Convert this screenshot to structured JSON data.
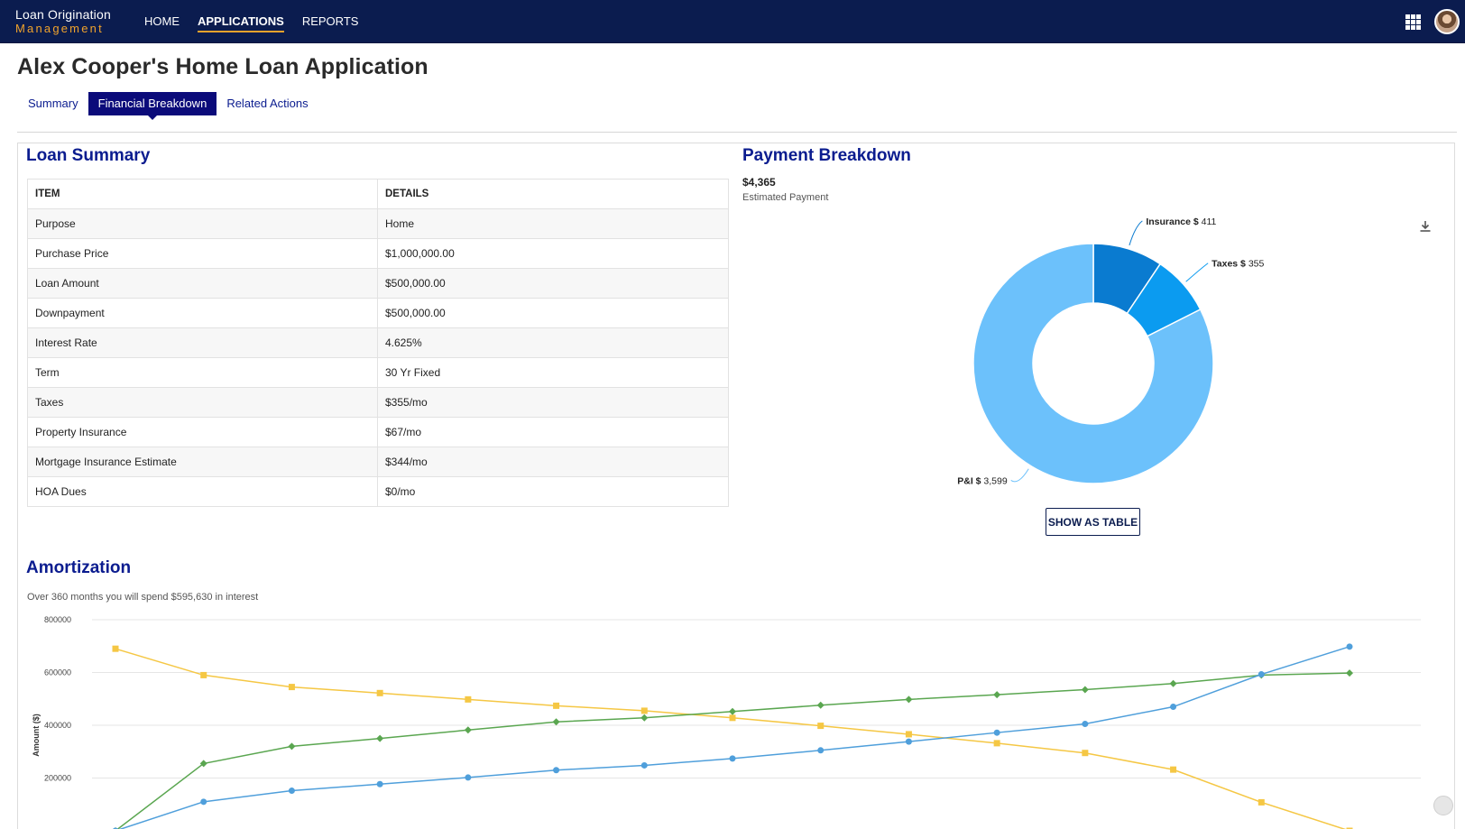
{
  "app": {
    "logo_line1": "Loan Origination",
    "logo_line2": "Management",
    "nav": [
      "HOME",
      "APPLICATIONS",
      "REPORTS"
    ],
    "active_nav": "APPLICATIONS",
    "accent": "#f0a32c",
    "navbar_color": "#0b1c4f"
  },
  "page": {
    "title": "Alex Cooper's Home Loan Application",
    "tabs": [
      "Summary",
      "Financial Breakdown",
      "Related Actions"
    ],
    "active_tab": "Financial Breakdown"
  },
  "loan_summary": {
    "title": "Loan Summary",
    "headers": [
      "ITEM",
      "DETAILS"
    ],
    "rows": [
      [
        "Purpose",
        "Home"
      ],
      [
        "Purchase Price",
        "$1,000,000.00"
      ],
      [
        "Loan Amount",
        "$500,000.00"
      ],
      [
        "Downpayment",
        "$500,000.00"
      ],
      [
        "Interest Rate",
        "4.625%"
      ],
      [
        "Term",
        "30 Yr Fixed"
      ],
      [
        "Taxes",
        "$355/mo"
      ],
      [
        "Property Insurance",
        "$67/mo"
      ],
      [
        "Mortgage Insurance Estimate",
        "$344/mo"
      ],
      [
        "HOA Dues",
        "$0/mo"
      ]
    ]
  },
  "payment_breakdown": {
    "title": "Payment Breakdown",
    "amount": "$4,365",
    "amount_label": "Estimated Payment",
    "button_label": "SHOW AS TABLE",
    "download_icon": "download-icon"
  },
  "amortization": {
    "title": "Amortization",
    "subtitle": "Over 360 months you will spend $595,630 in interest"
  },
  "chart_data": [
    {
      "type": "pie",
      "donut": true,
      "slices": [
        {
          "label": "Insurance $",
          "value": 411,
          "value_text": "411",
          "color": "#0a7bd0"
        },
        {
          "label": "Taxes $",
          "value": 355,
          "value_text": "355",
          "color": "#0b9bf0"
        },
        {
          "label": "P&I $",
          "value": 3599,
          "value_text": "3,599",
          "color": "#6cc1fb"
        }
      ]
    },
    {
      "type": "line",
      "ylabel": "Amount ($)",
      "ylim": [
        0,
        800000
      ],
      "yticks": [
        "200000",
        "400000",
        "600000",
        "800000"
      ],
      "grid": true,
      "x": [
        0,
        1,
        2,
        3,
        4,
        5,
        6,
        7,
        8,
        9,
        10,
        11,
        12,
        13,
        14
      ],
      "series": [
        {
          "marker": "square",
          "color": "#f5c744",
          "values": [
            690000,
            590000,
            545000,
            522000,
            498000,
            474000,
            455000,
            428000,
            398000,
            366000,
            332000,
            295000,
            232000,
            108000,
            0
          ]
        },
        {
          "marker": "diamond",
          "color": "#5aa650",
          "values": [
            0,
            255000,
            320000,
            350000,
            382000,
            413000,
            428000,
            452000,
            476000,
            498000,
            516000,
            535000,
            558000,
            590000,
            598000
          ]
        },
        {
          "marker": "circle",
          "color": "#4f9fdb",
          "values": [
            0,
            110000,
            152000,
            177000,
            202000,
            230000,
            248000,
            274000,
            305000,
            338000,
            372000,
            405000,
            470000,
            593000,
            698000
          ]
        }
      ]
    }
  ]
}
